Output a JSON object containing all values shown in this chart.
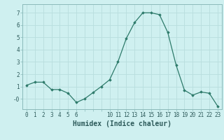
{
  "x": [
    0,
    1,
    2,
    3,
    4,
    5,
    6,
    7,
    8,
    9,
    10,
    11,
    12,
    13,
    14,
    15,
    16,
    17,
    18,
    19,
    20,
    21,
    22,
    23
  ],
  "y": [
    1.1,
    1.35,
    1.35,
    0.75,
    0.75,
    0.45,
    -0.3,
    0.0,
    0.5,
    1.0,
    1.55,
    3.0,
    4.9,
    6.2,
    7.0,
    7.0,
    6.85,
    5.4,
    2.75,
    0.7,
    0.3,
    0.55,
    0.45,
    -0.6
  ],
  "line_color": "#2d7a6a",
  "marker": "D",
  "marker_size": 1.8,
  "line_width": 0.9,
  "bg_color": "#cff0f0",
  "grid_color": "#b8dede",
  "xlabel": "Humidex (Indice chaleur)",
  "xlabel_fontsize": 7,
  "ytick_labels": [
    "-0",
    "1",
    "2",
    "3",
    "4",
    "5",
    "6",
    "7"
  ],
  "ytick_vals": [
    0,
    1,
    2,
    3,
    4,
    5,
    6,
    7
  ],
  "ylim": [
    -0.85,
    7.7
  ],
  "xlim": [
    -0.5,
    23.5
  ],
  "xticks": [
    0,
    1,
    2,
    3,
    4,
    5,
    6,
    10,
    11,
    12,
    13,
    14,
    15,
    16,
    17,
    18,
    19,
    20,
    21,
    22,
    23
  ],
  "tick_fontsize": 5.5,
  "tick_color": "#2d5a5a",
  "spine_color": "#8ababa"
}
